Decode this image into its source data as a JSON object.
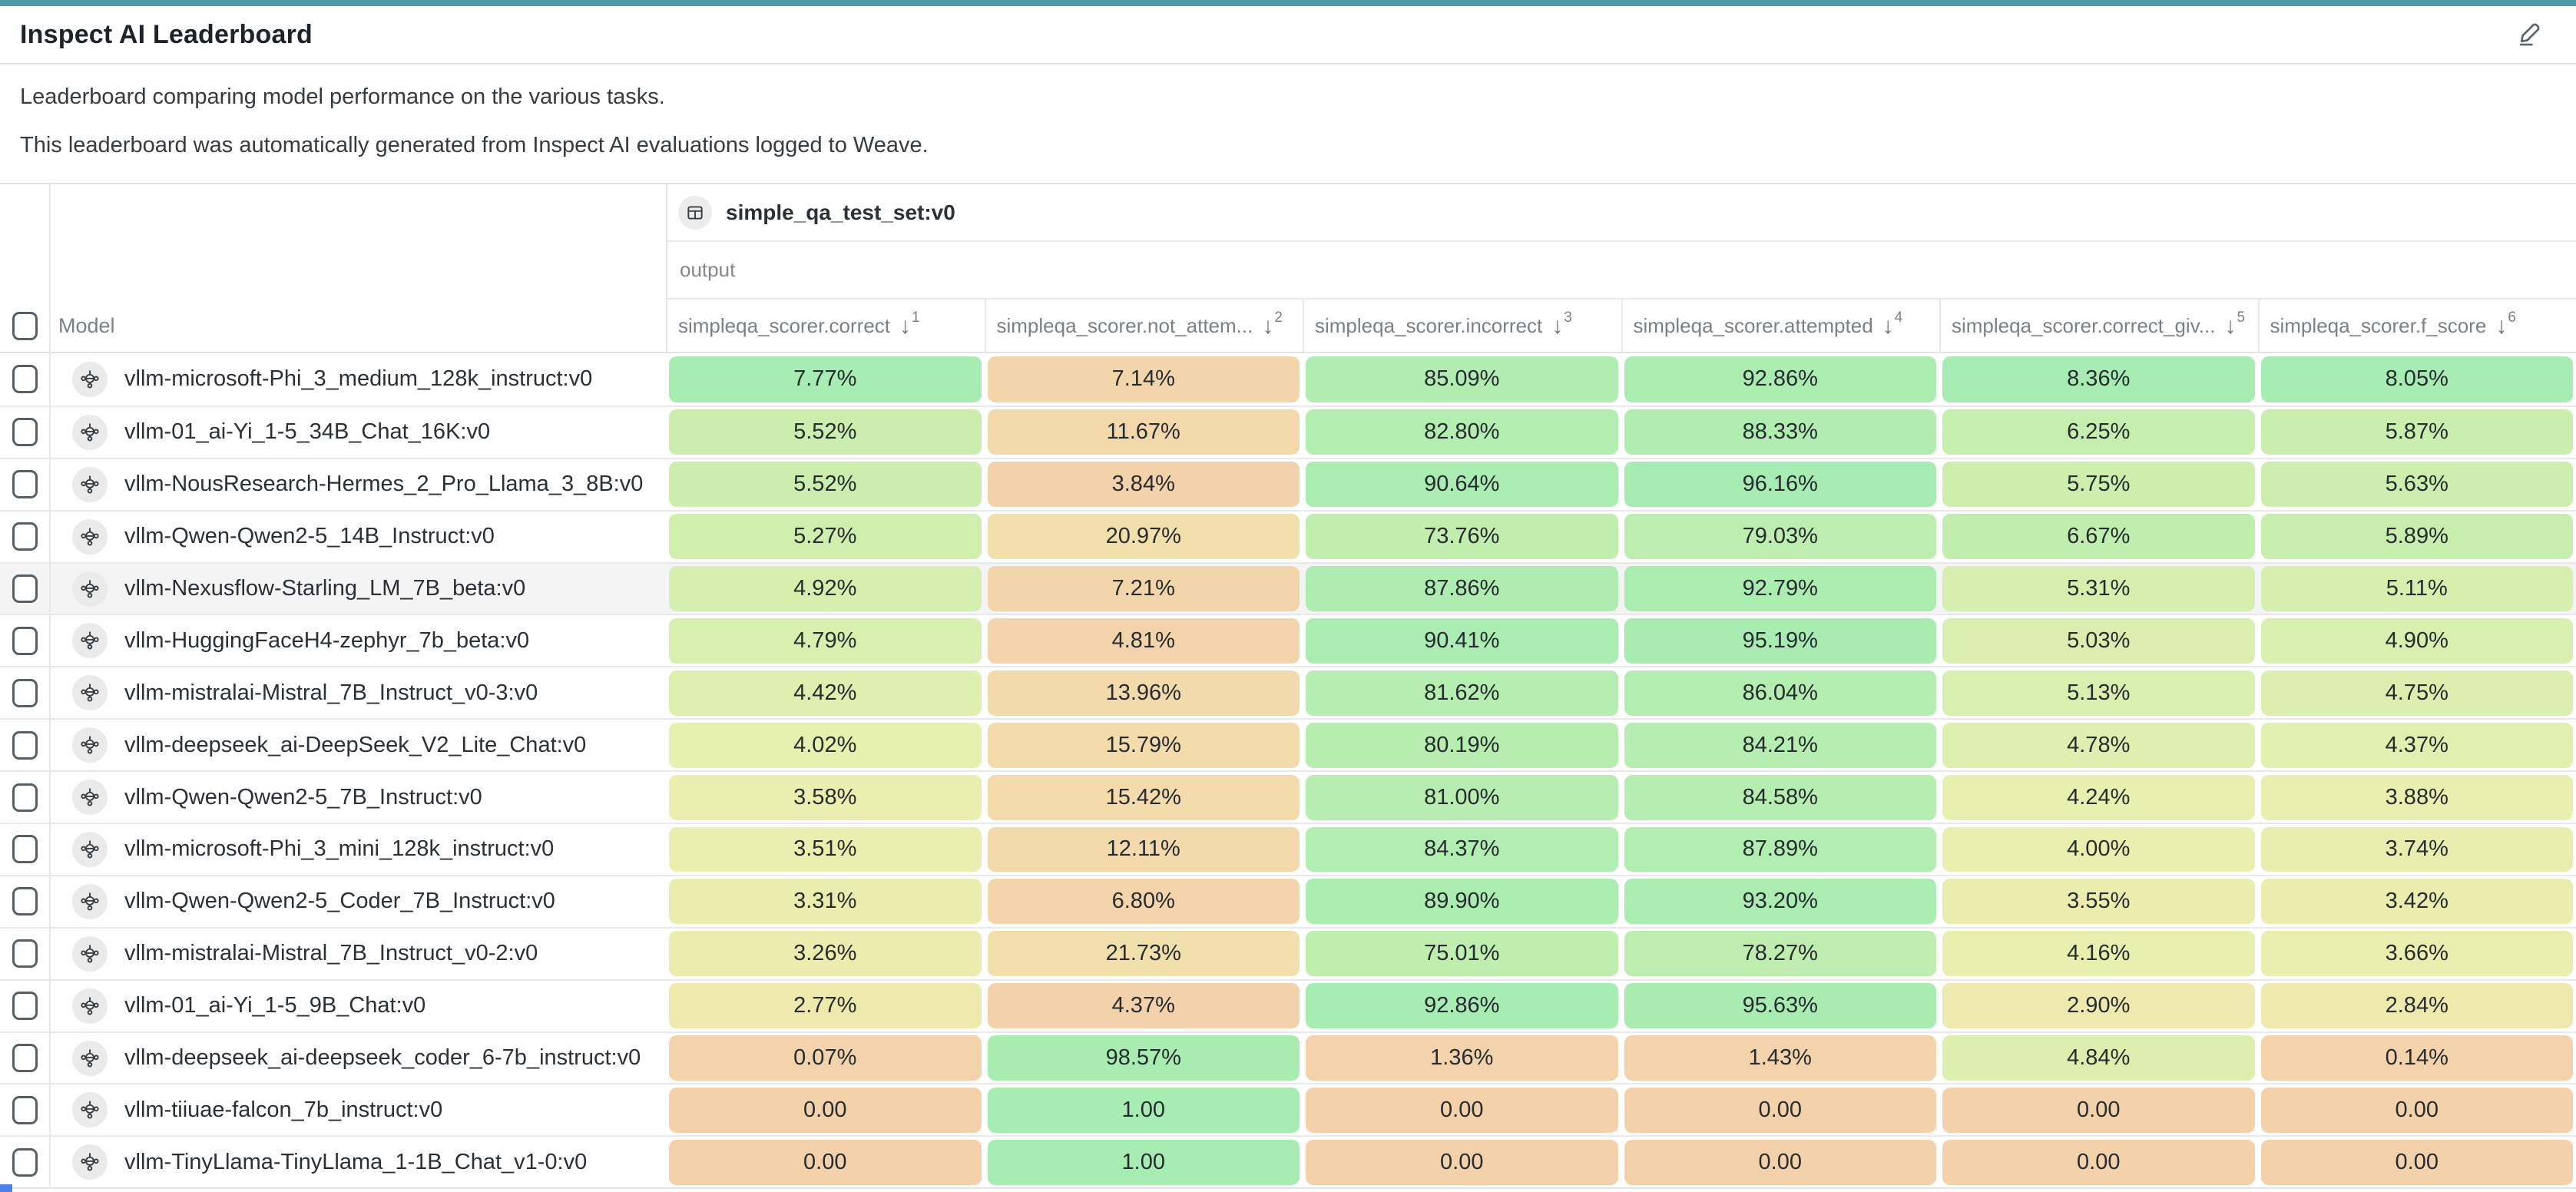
{
  "app": {
    "topbar_color": "#4f99a6",
    "blue_marker_color": "#4a80e8"
  },
  "header": {
    "title": "Inspect AI Leaderboard"
  },
  "description": {
    "line1": "Leaderboard comparing model performance on the various tasks.",
    "line2": "This leaderboard was automatically generated from Inspect AI evaluations logged to Weave."
  },
  "table": {
    "group_header": {
      "icon": "dataset-icon",
      "label": "simple_qa_test_set:v0"
    },
    "subgroup_label": "output",
    "model_column_label": "Model",
    "columns": [
      {
        "label": "simpleqa_scorer.correct",
        "sort_direction": "desc",
        "sort_priority": 1
      },
      {
        "label": "simpleqa_scorer.not_attem...",
        "sort_direction": "desc",
        "sort_priority": 2
      },
      {
        "label": "simpleqa_scorer.incorrect",
        "sort_direction": "desc",
        "sort_priority": 3
      },
      {
        "label": "simpleqa_scorer.attempted",
        "sort_direction": "desc",
        "sort_priority": 4
      },
      {
        "label": "simpleqa_scorer.correct_giv...",
        "sort_direction": "desc",
        "sort_priority": 5
      },
      {
        "label": "simpleqa_scorer.f_score",
        "sort_direction": "desc",
        "sort_priority": 6
      }
    ],
    "highlighted_row_index": 4,
    "heat_scale": {
      "stops": [
        "#f3d2ab",
        "#f2e5ad",
        "#e8f0af",
        "#c6eeae",
        "#a7ecb2"
      ]
    },
    "rows": [
      {
        "model": "vllm-microsoft-Phi_3_medium_128k_instruct:v0",
        "cells": [
          [
            "7.77%",
            0.0777
          ],
          [
            "7.14%",
            0.0714
          ],
          [
            "85.09%",
            0.8509
          ],
          [
            "92.86%",
            0.9286
          ],
          [
            "8.36%",
            0.0836
          ],
          [
            "8.05%",
            0.0805
          ]
        ]
      },
      {
        "model": "vllm-01_ai-Yi_1-5_34B_Chat_16K:v0",
        "cells": [
          [
            "5.52%",
            0.0552
          ],
          [
            "11.67%",
            0.1167
          ],
          [
            "82.80%",
            0.828
          ],
          [
            "88.33%",
            0.8833
          ],
          [
            "6.25%",
            0.0625
          ],
          [
            "5.87%",
            0.0587
          ]
        ]
      },
      {
        "model": "vllm-NousResearch-Hermes_2_Pro_Llama_3_8B:v0",
        "cells": [
          [
            "5.52%",
            0.0552
          ],
          [
            "3.84%",
            0.0384
          ],
          [
            "90.64%",
            0.9064
          ],
          [
            "96.16%",
            0.9616
          ],
          [
            "5.75%",
            0.0575
          ],
          [
            "5.63%",
            0.0563
          ]
        ]
      },
      {
        "model": "vllm-Qwen-Qwen2-5_14B_Instruct:v0",
        "cells": [
          [
            "5.27%",
            0.0527
          ],
          [
            "20.97%",
            0.2097
          ],
          [
            "73.76%",
            0.7376
          ],
          [
            "79.03%",
            0.7903
          ],
          [
            "6.67%",
            0.0667
          ],
          [
            "5.89%",
            0.0589
          ]
        ]
      },
      {
        "model": "vllm-Nexusflow-Starling_LM_7B_beta:v0",
        "cells": [
          [
            "4.92%",
            0.0492
          ],
          [
            "7.21%",
            0.0721
          ],
          [
            "87.86%",
            0.8786
          ],
          [
            "92.79%",
            0.9279
          ],
          [
            "5.31%",
            0.0531
          ],
          [
            "5.11%",
            0.0511
          ]
        ]
      },
      {
        "model": "vllm-HuggingFaceH4-zephyr_7b_beta:v0",
        "cells": [
          [
            "4.79%",
            0.0479
          ],
          [
            "4.81%",
            0.0481
          ],
          [
            "90.41%",
            0.9041
          ],
          [
            "95.19%",
            0.9519
          ],
          [
            "5.03%",
            0.0503
          ],
          [
            "4.90%",
            0.049
          ]
        ]
      },
      {
        "model": "vllm-mistralai-Mistral_7B_Instruct_v0-3:v0",
        "cells": [
          [
            "4.42%",
            0.0442
          ],
          [
            "13.96%",
            0.1396
          ],
          [
            "81.62%",
            0.8162
          ],
          [
            "86.04%",
            0.8604
          ],
          [
            "5.13%",
            0.0513
          ],
          [
            "4.75%",
            0.0475
          ]
        ]
      },
      {
        "model": "vllm-deepseek_ai-DeepSeek_V2_Lite_Chat:v0",
        "cells": [
          [
            "4.02%",
            0.0402
          ],
          [
            "15.79%",
            0.1579
          ],
          [
            "80.19%",
            0.8019
          ],
          [
            "84.21%",
            0.8421
          ],
          [
            "4.78%",
            0.0478
          ],
          [
            "4.37%",
            0.0437
          ]
        ]
      },
      {
        "model": "vllm-Qwen-Qwen2-5_7B_Instruct:v0",
        "cells": [
          [
            "3.58%",
            0.0358
          ],
          [
            "15.42%",
            0.1542
          ],
          [
            "81.00%",
            0.81
          ],
          [
            "84.58%",
            0.8458
          ],
          [
            "4.24%",
            0.0424
          ],
          [
            "3.88%",
            0.0388
          ]
        ]
      },
      {
        "model": "vllm-microsoft-Phi_3_mini_128k_instruct:v0",
        "cells": [
          [
            "3.51%",
            0.0351
          ],
          [
            "12.11%",
            0.1211
          ],
          [
            "84.37%",
            0.8437
          ],
          [
            "87.89%",
            0.8789
          ],
          [
            "4.00%",
            0.04
          ],
          [
            "3.74%",
            0.0374
          ]
        ]
      },
      {
        "model": "vllm-Qwen-Qwen2-5_Coder_7B_Instruct:v0",
        "cells": [
          [
            "3.31%",
            0.0331
          ],
          [
            "6.80%",
            0.068
          ],
          [
            "89.90%",
            0.899
          ],
          [
            "93.20%",
            0.932
          ],
          [
            "3.55%",
            0.0355
          ],
          [
            "3.42%",
            0.0342
          ]
        ]
      },
      {
        "model": "vllm-mistralai-Mistral_7B_Instruct_v0-2:v0",
        "cells": [
          [
            "3.26%",
            0.0326
          ],
          [
            "21.73%",
            0.2173
          ],
          [
            "75.01%",
            0.7501
          ],
          [
            "78.27%",
            0.7827
          ],
          [
            "4.16%",
            0.0416
          ],
          [
            "3.66%",
            0.0366
          ]
        ]
      },
      {
        "model": "vllm-01_ai-Yi_1-5_9B_Chat:v0",
        "cells": [
          [
            "2.77%",
            0.0277
          ],
          [
            "4.37%",
            0.0437
          ],
          [
            "92.86%",
            0.9286
          ],
          [
            "95.63%",
            0.9563
          ],
          [
            "2.90%",
            0.029
          ],
          [
            "2.84%",
            0.0284
          ]
        ]
      },
      {
        "model": "vllm-deepseek_ai-deepseek_coder_6-7b_instruct:v0",
        "cells": [
          [
            "0.07%",
            0.0007
          ],
          [
            "98.57%",
            0.9857
          ],
          [
            "1.36%",
            0.0136
          ],
          [
            "1.43%",
            0.0143
          ],
          [
            "4.84%",
            0.0484
          ],
          [
            "0.14%",
            0.0014
          ]
        ]
      },
      {
        "model": "vllm-tiiuae-falcon_7b_instruct:v0",
        "cells": [
          [
            "0.00",
            0.0
          ],
          [
            "1.00",
            1.0
          ],
          [
            "0.00",
            0.0
          ],
          [
            "0.00",
            0.0
          ],
          [
            "0.00",
            0.0
          ],
          [
            "0.00",
            0.0
          ]
        ]
      },
      {
        "model": "vllm-TinyLlama-TinyLlama_1-1B_Chat_v1-0:v0",
        "cells": [
          [
            "0.00",
            0.0
          ],
          [
            "1.00",
            1.0
          ],
          [
            "0.00",
            0.0
          ],
          [
            "0.00",
            0.0
          ],
          [
            "0.00",
            0.0
          ],
          [
            "0.00",
            0.0
          ]
        ]
      }
    ]
  }
}
